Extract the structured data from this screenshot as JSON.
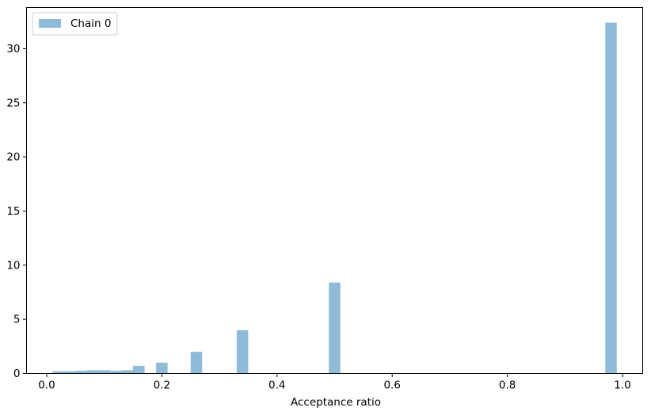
{
  "chart_data": {
    "type": "bar",
    "title": "",
    "xlabel": "Acceptance ratio",
    "ylabel": "",
    "xlim": [
      -0.035,
      1.035
    ],
    "ylim": [
      0,
      33.8
    ],
    "grid": false,
    "legend_position": "upper-left",
    "bar_color": "#1f77b4",
    "bar_opacity": 0.5,
    "bin_width": 0.02,
    "x_ticks": [
      0.0,
      0.2,
      0.4,
      0.6,
      0.8,
      1.0
    ],
    "x_tick_labels": [
      "0.0",
      "0.2",
      "0.4",
      "0.6",
      "0.8",
      "1.0"
    ],
    "y_ticks": [
      0,
      5,
      10,
      15,
      20,
      25,
      30
    ],
    "y_tick_labels": [
      "0",
      "5",
      "10",
      "15",
      "20",
      "25",
      "30"
    ],
    "series": [
      {
        "name": "Chain 0",
        "bins": [
          {
            "x": 0.02,
            "value": 0.2
          },
          {
            "x": 0.04,
            "value": 0.2
          },
          {
            "x": 0.06,
            "value": 0.25
          },
          {
            "x": 0.08,
            "value": 0.3
          },
          {
            "x": 0.1,
            "value": 0.3
          },
          {
            "x": 0.12,
            "value": 0.25
          },
          {
            "x": 0.14,
            "value": 0.3
          },
          {
            "x": 0.16,
            "value": 0.7
          },
          {
            "x": 0.2,
            "value": 1.0
          },
          {
            "x": 0.26,
            "value": 2.0
          },
          {
            "x": 0.34,
            "value": 4.0
          },
          {
            "x": 0.5,
            "value": 8.4
          },
          {
            "x": 0.98,
            "value": 32.4
          }
        ]
      }
    ]
  }
}
